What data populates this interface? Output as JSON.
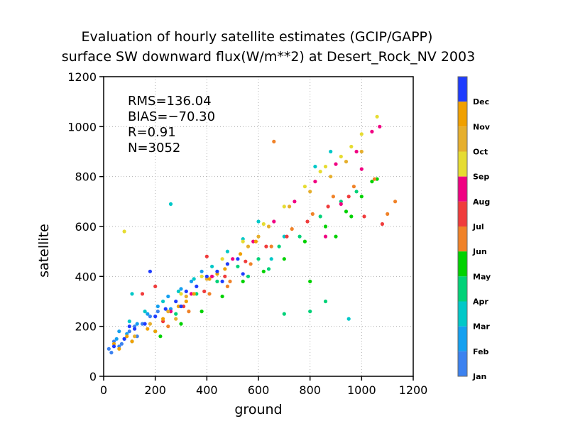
{
  "chart_data": {
    "type": "scatter",
    "title_line1": "Evaluation of hourly satellite estimates (GCIP/GAPP)",
    "title_line2": "surface SW downward flux(W/m**2) at Desert_Rock_NV 2003",
    "xlabel": "ground",
    "ylabel": "satellite",
    "xlim": [
      0,
      1200
    ],
    "ylim": [
      0,
      1200
    ],
    "xticks": [
      "0",
      "200",
      "400",
      "600",
      "800",
      "1000",
      "1200"
    ],
    "yticks": [
      "0",
      "200",
      "400",
      "600",
      "800",
      "1000",
      "1200"
    ],
    "grid": true,
    "stats": {
      "rms": "RMS=136.04",
      "bias": "BIAS=−70.30",
      "r": "R=0.91",
      "n": "N=3052"
    },
    "colorbar": {
      "months": [
        "Jan",
        "Feb",
        "Mar",
        "Apr",
        "May",
        "Jun",
        "Jul",
        "Aug",
        "Sep",
        "Oct",
        "Nov",
        "Dec"
      ],
      "colors": [
        "#3c82f0",
        "#14a0f0",
        "#00c8c8",
        "#00d278",
        "#00d200",
        "#f08228",
        "#f03c3c",
        "#f00082",
        "#e6dc32",
        "#e6af2d",
        "#f0a000",
        "#1e3cff"
      ]
    },
    "series": [
      {
        "month": "Jan",
        "points": [
          [
            20,
            110
          ],
          [
            40,
            140
          ],
          [
            60,
            120
          ],
          [
            80,
            150
          ],
          [
            100,
            180
          ],
          [
            120,
            200
          ],
          [
            150,
            210
          ],
          [
            180,
            240
          ],
          [
            210,
            260
          ],
          [
            30,
            95
          ],
          [
            70,
            130
          ],
          [
            130,
            160
          ]
        ]
      },
      {
        "month": "Feb",
        "points": [
          [
            50,
            150
          ],
          [
            90,
            170
          ],
          [
            130,
            210
          ],
          [
            170,
            250
          ],
          [
            210,
            280
          ],
          [
            250,
            320
          ],
          [
            300,
            350
          ],
          [
            340,
            380
          ],
          [
            380,
            420
          ],
          [
            60,
            180
          ],
          [
            110,
            140
          ],
          [
            260,
            270
          ]
        ]
      },
      {
        "month": "Mar",
        "points": [
          [
            100,
            220
          ],
          [
            160,
            260
          ],
          [
            230,
            300
          ],
          [
            290,
            340
          ],
          [
            350,
            390
          ],
          [
            420,
            440
          ],
          [
            480,
            500
          ],
          [
            540,
            550
          ],
          [
            600,
            620
          ],
          [
            950,
            230
          ],
          [
            260,
            690
          ],
          [
            700,
            560
          ],
          [
            820,
            840
          ],
          [
            880,
            900
          ],
          [
            110,
            330
          ],
          [
            650,
            470
          ]
        ]
      },
      {
        "month": "Apr",
        "points": [
          [
            200,
            180
          ],
          [
            280,
            250
          ],
          [
            360,
            330
          ],
          [
            440,
            380
          ],
          [
            520,
            440
          ],
          [
            600,
            470
          ],
          [
            680,
            520
          ],
          [
            760,
            560
          ],
          [
            840,
            640
          ],
          [
            920,
            700
          ],
          [
            980,
            740
          ],
          [
            700,
            250
          ],
          [
            800,
            260
          ],
          [
            860,
            300
          ],
          [
            560,
            400
          ],
          [
            640,
            430
          ]
        ]
      },
      {
        "month": "May",
        "points": [
          [
            220,
            160
          ],
          [
            300,
            210
          ],
          [
            380,
            260
          ],
          [
            460,
            320
          ],
          [
            540,
            380
          ],
          [
            620,
            420
          ],
          [
            700,
            470
          ],
          [
            780,
            540
          ],
          [
            860,
            600
          ],
          [
            940,
            660
          ],
          [
            1000,
            720
          ],
          [
            1040,
            780
          ],
          [
            1060,
            790
          ],
          [
            900,
            560
          ],
          [
            960,
            640
          ],
          [
            800,
            380
          ]
        ]
      },
      {
        "month": "Jun",
        "points": [
          [
            250,
            200
          ],
          [
            330,
            260
          ],
          [
            410,
            330
          ],
          [
            490,
            380
          ],
          [
            570,
            450
          ],
          [
            650,
            520
          ],
          [
            730,
            590
          ],
          [
            810,
            650
          ],
          [
            890,
            720
          ],
          [
            970,
            760
          ],
          [
            1050,
            790
          ],
          [
            1100,
            650
          ],
          [
            1130,
            700
          ],
          [
            660,
            940
          ],
          [
            480,
            360
          ]
        ]
      },
      {
        "month": "Jul",
        "points": [
          [
            230,
            220
          ],
          [
            310,
            280
          ],
          [
            390,
            340
          ],
          [
            470,
            400
          ],
          [
            550,
            460
          ],
          [
            630,
            520
          ],
          [
            710,
            560
          ],
          [
            790,
            620
          ],
          [
            870,
            680
          ],
          [
            950,
            720
          ],
          [
            1010,
            640
          ],
          [
            1080,
            610
          ],
          [
            150,
            330
          ],
          [
            200,
            360
          ],
          [
            400,
            480
          ]
        ]
      },
      {
        "month": "Aug",
        "points": [
          [
            260,
            260
          ],
          [
            340,
            330
          ],
          [
            420,
            400
          ],
          [
            500,
            470
          ],
          [
            580,
            540
          ],
          [
            660,
            620
          ],
          [
            740,
            700
          ],
          [
            820,
            780
          ],
          [
            900,
            850
          ],
          [
            980,
            900
          ],
          [
            1040,
            980
          ],
          [
            1070,
            1000
          ],
          [
            920,
            690
          ],
          [
            860,
            560
          ],
          [
            1000,
            830
          ]
        ]
      },
      {
        "month": "Sep",
        "points": [
          [
            300,
            330
          ],
          [
            380,
            400
          ],
          [
            460,
            470
          ],
          [
            540,
            540
          ],
          [
            620,
            610
          ],
          [
            700,
            680
          ],
          [
            780,
            760
          ],
          [
            860,
            840
          ],
          [
            920,
            880
          ],
          [
            960,
            920
          ],
          [
            1000,
            970
          ],
          [
            1060,
            1040
          ],
          [
            80,
            580
          ],
          [
            840,
            820
          ]
        ]
      },
      {
        "month": "Oct",
        "points": [
          [
            180,
            210
          ],
          [
            250,
            260
          ],
          [
            320,
            320
          ],
          [
            400,
            390
          ],
          [
            480,
            450
          ],
          [
            560,
            520
          ],
          [
            640,
            600
          ],
          [
            720,
            680
          ],
          [
            800,
            740
          ],
          [
            880,
            800
          ],
          [
            940,
            860
          ],
          [
            1000,
            900
          ],
          [
            120,
            160
          ],
          [
            280,
            230
          ],
          [
            600,
            560
          ]
        ]
      },
      {
        "month": "Nov",
        "points": [
          [
            60,
            110
          ],
          [
            110,
            140
          ],
          [
            170,
            190
          ],
          [
            230,
            230
          ],
          [
            290,
            280
          ],
          [
            350,
            330
          ],
          [
            410,
            390
          ],
          [
            470,
            430
          ],
          [
            530,
            490
          ],
          [
            590,
            540
          ],
          [
            40,
            130
          ],
          [
            90,
            160
          ],
          [
            200,
            180
          ],
          [
            320,
            300
          ],
          [
            440,
            410
          ]
        ]
      },
      {
        "month": "Dec",
        "points": [
          [
            40,
            120
          ],
          [
            80,
            150
          ],
          [
            120,
            190
          ],
          [
            160,
            210
          ],
          [
            200,
            240
          ],
          [
            240,
            270
          ],
          [
            280,
            300
          ],
          [
            320,
            340
          ],
          [
            360,
            360
          ],
          [
            400,
            400
          ],
          [
            440,
            420
          ],
          [
            480,
            450
          ],
          [
            520,
            470
          ],
          [
            100,
            200
          ],
          [
            300,
            280
          ],
          [
            460,
            380
          ],
          [
            180,
            420
          ],
          [
            540,
            410
          ]
        ]
      }
    ]
  }
}
